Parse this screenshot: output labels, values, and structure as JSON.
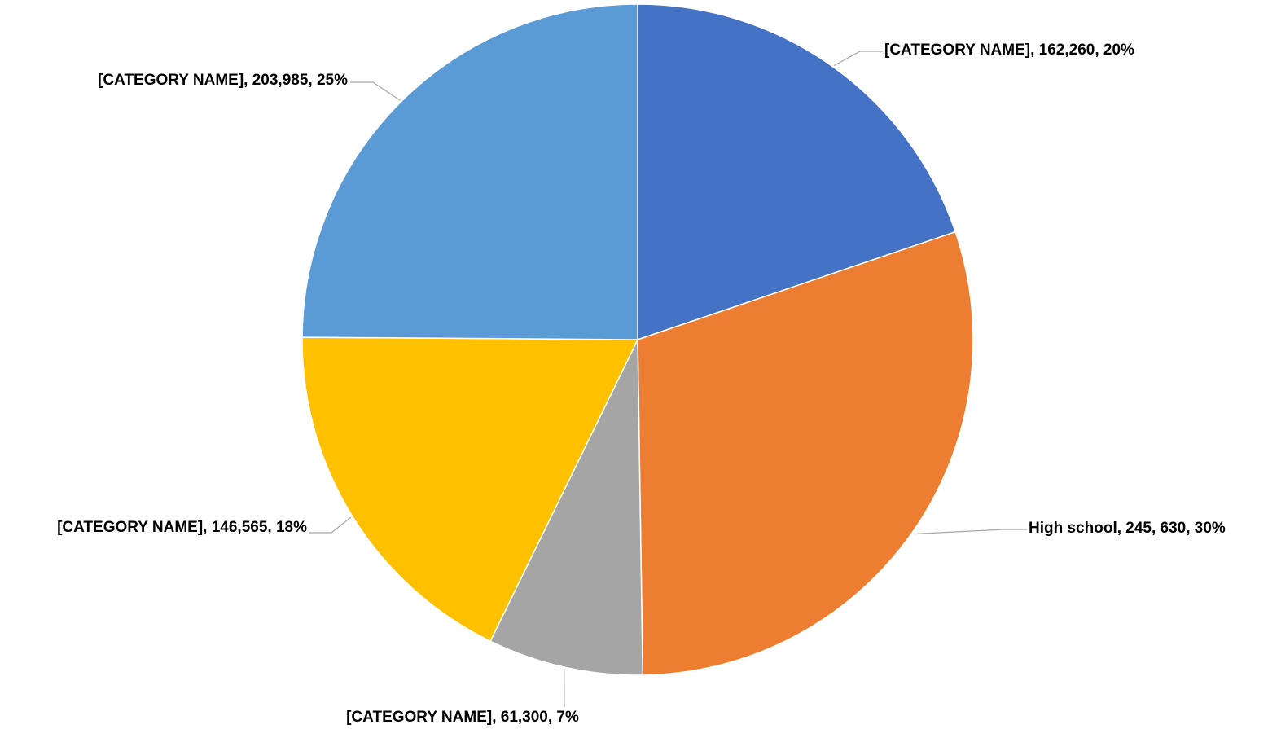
{
  "chart_data": {
    "type": "pie",
    "title": "",
    "start_angle_deg": 0,
    "direction": "clockwise",
    "slices": [
      {
        "label_text": "[CATEGORY NAME], 162,260, 20%",
        "value": 162260,
        "percent": 20,
        "color": "#4472C4",
        "label_side": "right"
      },
      {
        "label_text": "High school, 245, 630, 30%",
        "value": 245630,
        "percent": 30,
        "color": "#ED7D31",
        "label_side": "right"
      },
      {
        "label_text": "[CATEGORY NAME], 61,300, 7%",
        "value": 61300,
        "percent": 7,
        "color": "#A5A5A5",
        "label_side": "bottom"
      },
      {
        "label_text": "[CATEGORY NAME], 146,565, 18%",
        "value": 146565,
        "percent": 18,
        "color": "#FFC000",
        "label_side": "left"
      },
      {
        "label_text": "[CATEGORY NAME], 203,985, 25%",
        "value": 203985,
        "percent": 25,
        "color": "#5B9BD5",
        "label_side": "left"
      }
    ],
    "legend": "none"
  }
}
